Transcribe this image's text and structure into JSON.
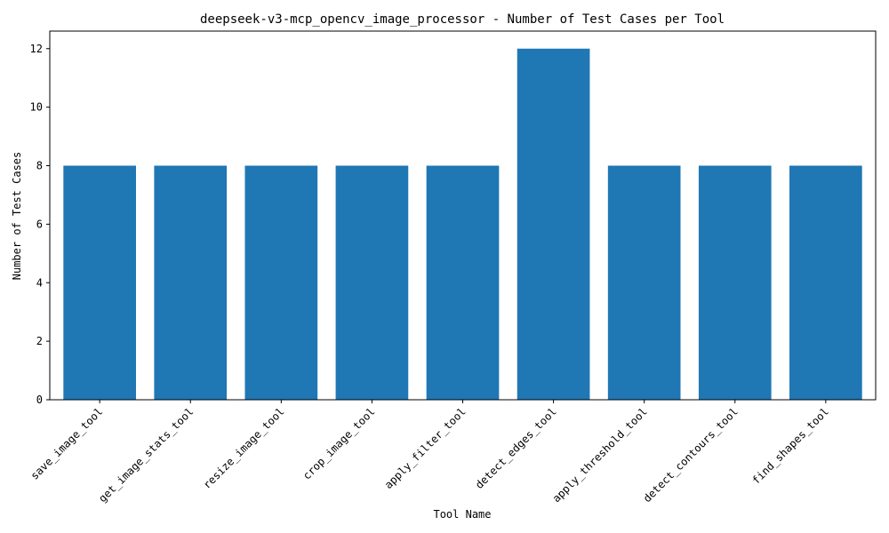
{
  "chart_data": {
    "type": "bar",
    "title": "deepseek-v3-mcp_opencv_image_processor - Number of Test Cases per Tool",
    "xlabel": "Tool Name",
    "ylabel": "Number of Test Cases",
    "categories": [
      "save_image_tool",
      "get_image_stats_tool",
      "resize_image_tool",
      "crop_image_tool",
      "apply_filter_tool",
      "detect_edges_tool",
      "apply_threshold_tool",
      "detect_contours_tool",
      "find_shapes_tool"
    ],
    "values": [
      8,
      8,
      8,
      8,
      8,
      12,
      8,
      8,
      8
    ],
    "ylim": [
      0,
      12.6
    ],
    "yticks": [
      0,
      2,
      4,
      6,
      8,
      10,
      12
    ],
    "bar_color": "#1f77b4",
    "grid": false
  }
}
